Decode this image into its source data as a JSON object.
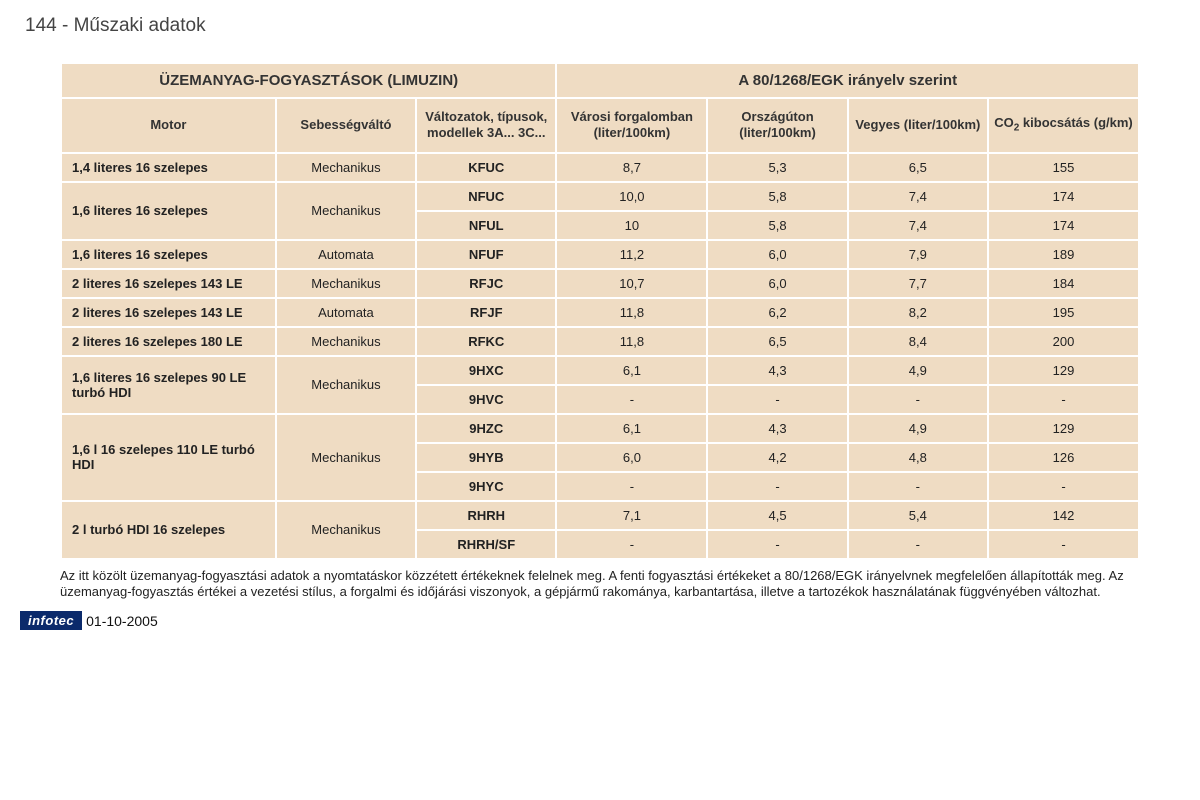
{
  "page_title": "144 - Műszaki adatok",
  "header_left": "ÜZEMANYAG-FOGYASZTÁSOK (LIMUZIN)",
  "header_right": "A 80/1268/EGK irányelv szerint",
  "columns": {
    "motor": "Motor",
    "gearbox": "Sebességváltó",
    "variants": "Változatok, típusok, modellek 3A... 3C...",
    "urban": "Városi forgalomban (liter/100km)",
    "road": "Országúton (liter/100km)",
    "mixed": "Vegyes (liter/100km)",
    "co2_a": "CO",
    "co2_b": " kibocsátás (g/km)"
  },
  "groups": [
    {
      "motor": "1,4 literes 16 szelepes",
      "gearbox": "Mechanikus",
      "rows": [
        {
          "code": "KFUC",
          "urban": "8,7",
          "road": "5,3",
          "mixed": "6,5",
          "co2": "155"
        }
      ]
    },
    {
      "motor": "1,6 literes 16 szelepes",
      "gearbox": "Mechanikus",
      "rows": [
        {
          "code": "NFUC",
          "urban": "10,0",
          "road": "5,8",
          "mixed": "7,4",
          "co2": "174"
        },
        {
          "code": "NFUL",
          "urban": "10",
          "road": "5,8",
          "mixed": "7,4",
          "co2": "174"
        }
      ]
    },
    {
      "motor": "1,6 literes 16 szelepes",
      "gearbox": "Automata",
      "rows": [
        {
          "code": "NFUF",
          "urban": "11,2",
          "road": "6,0",
          "mixed": "7,9",
          "co2": "189"
        }
      ]
    },
    {
      "motor": "2 literes 16 szelepes 143 LE",
      "gearbox": "Mechanikus",
      "rows": [
        {
          "code": "RFJC",
          "urban": "10,7",
          "road": "6,0",
          "mixed": "7,7",
          "co2": "184"
        }
      ]
    },
    {
      "motor": "2 literes 16 szelepes 143 LE",
      "gearbox": "Automata",
      "rows": [
        {
          "code": "RFJF",
          "urban": "11,8",
          "road": "6,2",
          "mixed": "8,2",
          "co2": "195"
        }
      ]
    },
    {
      "motor": "2 literes 16 szelepes 180 LE",
      "gearbox": "Mechanikus",
      "rows": [
        {
          "code": "RFKC",
          "urban": "11,8",
          "road": "6,5",
          "mixed": "8,4",
          "co2": "200"
        }
      ]
    },
    {
      "motor": "1,6 literes 16 szelepes 90 LE turbó HDI",
      "gearbox": "Mechanikus",
      "rows": [
        {
          "code": "9HXC",
          "urban": "6,1",
          "road": "4,3",
          "mixed": "4,9",
          "co2": "129"
        },
        {
          "code": "9HVC",
          "urban": "-",
          "road": "-",
          "mixed": "-",
          "co2": "-"
        }
      ]
    },
    {
      "motor": "1,6 l 16 szelepes 110 LE turbó HDI",
      "gearbox": "Mechanikus",
      "rows": [
        {
          "code": "9HZC",
          "urban": "6,1",
          "road": "4,3",
          "mixed": "4,9",
          "co2": "129"
        },
        {
          "code": "9HYB",
          "urban": "6,0",
          "road": "4,2",
          "mixed": "4,8",
          "co2": "126"
        },
        {
          "code": "9HYC",
          "urban": "-",
          "road": "-",
          "mixed": "-",
          "co2": "-"
        }
      ]
    },
    {
      "motor": "2 l turbó HDI 16 szelepes",
      "gearbox": "Mechanikus",
      "rows": [
        {
          "code": "RHRH",
          "urban": "7,1",
          "road": "4,5",
          "mixed": "5,4",
          "co2": "142"
        },
        {
          "code": "RHRH/SF",
          "urban": "-",
          "road": "-",
          "mixed": "-",
          "co2": "-"
        }
      ]
    }
  ],
  "footnote": "Az itt közölt üzemanyag-fogyasztási adatok a nyomtatáskor közzétett értékeknek felelnek meg. A fenti fogyasztási értékeket a 80/1268/EGK irányelvnek megfelelően állapították meg. Az üzemanyag-fogyasztás értékei a vezetési stílus, a forgalmi és időjárási viszonyok, a gépjármű rakománya, karbantartása, illetve a tartozékok használatának függvényében változhat.",
  "footer_brand": "infotec",
  "footer_date": "01-10-2005",
  "colors": {
    "cell_bg": "#efdcc3",
    "page_bg": "#ffffff",
    "brand_bg": "#0b2a6b",
    "brand_fg": "#ffffff",
    "text": "#222222"
  },
  "col_widths": [
    "20%",
    "13%",
    "13%",
    "14%",
    "13%",
    "13%",
    "14%"
  ]
}
